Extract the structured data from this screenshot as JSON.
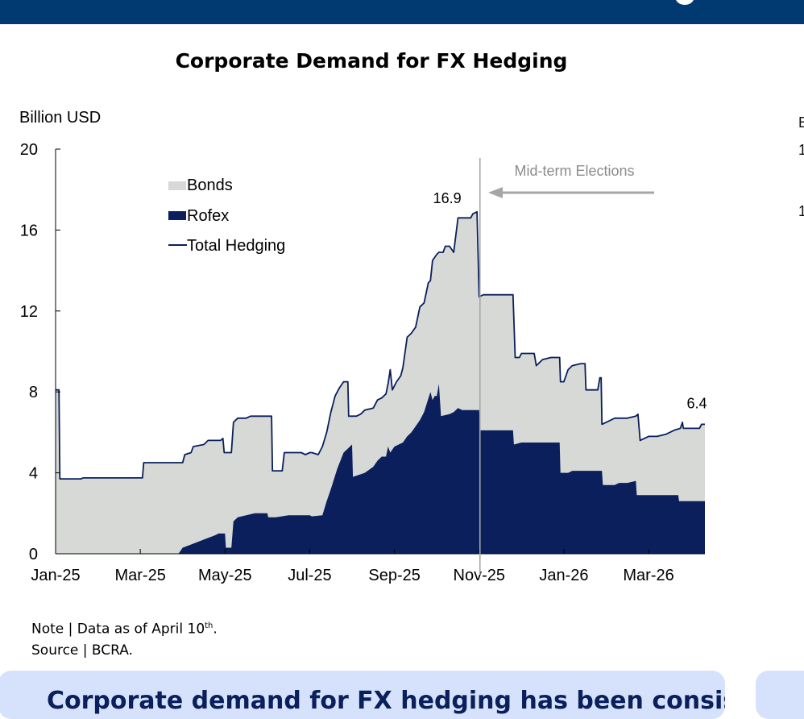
{
  "chart_data": {
    "type": "area",
    "title": "Corporate Demand for FX Hedging",
    "ylabel": "Billion USD",
    "xlabel": "",
    "ylim": [
      0,
      20
    ],
    "yticks": [
      0,
      4,
      8,
      12,
      16,
      20
    ],
    "x_tick_labels": [
      "Jan-25",
      "Mar-25",
      "May-25",
      "Jul-25",
      "Sep-25",
      "Nov-25",
      "Jan-26",
      "Mar-26"
    ],
    "x_range_months": [
      0,
      15.33
    ],
    "legend": {
      "position": "top-left",
      "labels": [
        "Bonds",
        "Rofex",
        "Total Hedging"
      ]
    },
    "series": [
      {
        "name": "Rofex",
        "kind": "area",
        "color": "#0a1f5c",
        "points": [
          [
            0,
            0
          ],
          [
            2.9,
            0
          ],
          [
            3.0,
            0.3
          ],
          [
            3.25,
            0.5
          ],
          [
            3.5,
            0.7
          ],
          [
            3.75,
            0.9
          ],
          [
            3.85,
            1.0
          ],
          [
            4.0,
            1.0
          ],
          [
            4.02,
            0.3
          ],
          [
            4.15,
            0.3
          ],
          [
            4.2,
            1.6
          ],
          [
            4.3,
            1.8
          ],
          [
            4.5,
            1.9
          ],
          [
            4.7,
            2.0
          ],
          [
            5.0,
            2.0
          ],
          [
            5.02,
            1.8
          ],
          [
            5.2,
            1.8
          ],
          [
            5.5,
            1.9
          ],
          [
            5.8,
            1.9
          ],
          [
            6.0,
            1.9
          ],
          [
            6.05,
            1.85
          ],
          [
            6.3,
            1.9
          ],
          [
            6.4,
            2.6
          ],
          [
            6.5,
            3.2
          ],
          [
            6.65,
            4.2
          ],
          [
            6.8,
            5.0
          ],
          [
            6.9,
            5.2
          ],
          [
            7.0,
            5.4
          ],
          [
            7.02,
            3.8
          ],
          [
            7.3,
            4.0
          ],
          [
            7.5,
            4.3
          ],
          [
            7.6,
            4.6
          ],
          [
            7.7,
            4.8
          ],
          [
            7.8,
            4.8
          ],
          [
            7.85,
            5.3
          ],
          [
            7.9,
            5.0
          ],
          [
            8.0,
            5.3
          ],
          [
            8.2,
            5.5
          ],
          [
            8.3,
            5.8
          ],
          [
            8.4,
            6.0
          ],
          [
            8.5,
            6.3
          ],
          [
            8.6,
            6.6
          ],
          [
            8.7,
            7.0
          ],
          [
            8.85,
            8.0
          ],
          [
            8.9,
            7.6
          ],
          [
            8.95,
            7.8
          ],
          [
            9.0,
            7.8
          ],
          [
            9.05,
            8.4
          ],
          [
            9.1,
            6.8
          ],
          [
            9.3,
            6.9
          ],
          [
            9.4,
            7.0
          ],
          [
            9.5,
            7.2
          ],
          [
            9.6,
            7.1
          ],
          [
            9.8,
            7.1
          ],
          [
            10.0,
            7.1
          ],
          [
            10.02,
            6.1
          ],
          [
            10.3,
            6.1
          ],
          [
            10.5,
            6.1
          ],
          [
            10.8,
            6.1
          ],
          [
            10.82,
            5.4
          ],
          [
            11.0,
            5.5
          ],
          [
            11.3,
            5.5
          ],
          [
            11.7,
            5.5
          ],
          [
            11.9,
            5.5
          ],
          [
            11.92,
            4.0
          ],
          [
            12.1,
            4.0
          ],
          [
            12.2,
            4.1
          ],
          [
            12.9,
            4.1
          ],
          [
            12.92,
            3.4
          ],
          [
            13.2,
            3.4
          ],
          [
            13.3,
            3.5
          ],
          [
            13.5,
            3.5
          ],
          [
            13.7,
            3.6
          ],
          [
            13.72,
            2.9
          ],
          [
            14.0,
            2.9
          ],
          [
            14.5,
            2.9
          ],
          [
            14.7,
            2.9
          ],
          [
            14.72,
            2.6
          ],
          [
            15.0,
            2.6
          ],
          [
            15.33,
            2.6
          ]
        ]
      },
      {
        "name": "Total Hedging",
        "kind": "line-with-bonds-fill",
        "color": "#0a1f5c",
        "fill_color": "#d6d9d6",
        "points": [
          [
            0,
            8.1
          ],
          [
            0.08,
            8.1
          ],
          [
            0.1,
            3.7
          ],
          [
            0.6,
            3.7
          ],
          [
            0.65,
            3.75
          ],
          [
            2.0,
            3.75
          ],
          [
            2.05,
            3.75
          ],
          [
            2.08,
            4.5
          ],
          [
            2.5,
            4.5
          ],
          [
            2.9,
            4.5
          ],
          [
            3.0,
            4.5
          ],
          [
            3.05,
            4.9
          ],
          [
            3.2,
            5.0
          ],
          [
            3.25,
            5.3
          ],
          [
            3.5,
            5.4
          ],
          [
            3.6,
            5.6
          ],
          [
            3.8,
            5.6
          ],
          [
            3.9,
            5.6
          ],
          [
            3.95,
            5.7
          ],
          [
            3.98,
            5.0
          ],
          [
            4.15,
            5.0
          ],
          [
            4.2,
            6.5
          ],
          [
            4.3,
            6.7
          ],
          [
            4.5,
            6.7
          ],
          [
            4.6,
            6.8
          ],
          [
            4.9,
            6.8
          ],
          [
            5.1,
            6.8
          ],
          [
            5.12,
            4.1
          ],
          [
            5.35,
            4.1
          ],
          [
            5.4,
            5.0
          ],
          [
            5.6,
            5.0
          ],
          [
            5.8,
            5.0
          ],
          [
            5.9,
            4.9
          ],
          [
            6.0,
            5.0
          ],
          [
            6.05,
            5.0
          ],
          [
            6.2,
            4.9
          ],
          [
            6.3,
            5.3
          ],
          [
            6.4,
            6.0
          ],
          [
            6.5,
            7.0
          ],
          [
            6.6,
            7.8
          ],
          [
            6.7,
            8.2
          ],
          [
            6.8,
            8.5
          ],
          [
            6.9,
            8.5
          ],
          [
            6.92,
            6.8
          ],
          [
            7.1,
            6.8
          ],
          [
            7.2,
            6.9
          ],
          [
            7.3,
            7.1
          ],
          [
            7.5,
            7.2
          ],
          [
            7.6,
            7.6
          ],
          [
            7.7,
            7.7
          ],
          [
            7.8,
            7.9
          ],
          [
            7.85,
            8.4
          ],
          [
            7.9,
            9.1
          ],
          [
            7.95,
            8.1
          ],
          [
            8.05,
            8.5
          ],
          [
            8.15,
            8.8
          ],
          [
            8.2,
            9.2
          ],
          [
            8.3,
            10.7
          ],
          [
            8.4,
            10.9
          ],
          [
            8.5,
            11.2
          ],
          [
            8.6,
            12.2
          ],
          [
            8.7,
            12.4
          ],
          [
            8.8,
            13.4
          ],
          [
            8.85,
            13.5
          ],
          [
            8.9,
            14.5
          ],
          [
            9.0,
            14.8
          ],
          [
            9.05,
            14.9
          ],
          [
            9.15,
            14.9
          ],
          [
            9.2,
            15.2
          ],
          [
            9.3,
            15.2
          ],
          [
            9.4,
            14.9
          ],
          [
            9.5,
            16.6
          ],
          [
            9.6,
            16.6
          ],
          [
            9.8,
            16.6
          ],
          [
            9.85,
            16.8
          ],
          [
            9.95,
            16.9
          ],
          [
            10.0,
            12.7
          ],
          [
            10.1,
            12.8
          ],
          [
            10.5,
            12.8
          ],
          [
            10.8,
            12.8
          ],
          [
            10.85,
            9.7
          ],
          [
            10.95,
            9.7
          ],
          [
            11.0,
            9.9
          ],
          [
            11.3,
            9.9
          ],
          [
            11.35,
            9.3
          ],
          [
            11.5,
            9.6
          ],
          [
            11.7,
            9.7
          ],
          [
            11.9,
            9.7
          ],
          [
            11.92,
            8.5
          ],
          [
            12.0,
            8.5
          ],
          [
            12.1,
            9.1
          ],
          [
            12.2,
            9.3
          ],
          [
            12.4,
            9.4
          ],
          [
            12.5,
            9.4
          ],
          [
            12.52,
            8.1
          ],
          [
            12.8,
            8.1
          ],
          [
            12.85,
            8.7
          ],
          [
            12.88,
            8.7
          ],
          [
            12.9,
            6.4
          ],
          [
            13.0,
            6.5
          ],
          [
            13.2,
            6.7
          ],
          [
            13.5,
            6.7
          ],
          [
            13.7,
            6.8
          ],
          [
            13.75,
            6.9
          ],
          [
            13.8,
            5.6
          ],
          [
            13.9,
            5.7
          ],
          [
            14.0,
            5.8
          ],
          [
            14.2,
            5.8
          ],
          [
            14.4,
            5.9
          ],
          [
            14.5,
            6.0
          ],
          [
            14.6,
            6.1
          ],
          [
            14.75,
            6.2
          ],
          [
            14.8,
            6.5
          ],
          [
            14.82,
            6.2
          ],
          [
            15.0,
            6.2
          ],
          [
            15.2,
            6.2
          ],
          [
            15.25,
            6.4
          ],
          [
            15.33,
            6.4
          ]
        ]
      }
    ],
    "annotations": [
      {
        "text": "16.9",
        "x": 9.95,
        "y": 16.9
      },
      {
        "text": "6.4",
        "x": 15.33,
        "y": 6.4
      },
      {
        "text": "Mid-term Elections",
        "x": 10.0,
        "kind": "vertical-line-with-arrow"
      }
    ]
  },
  "note": {
    "prefix": "Note | Data as of April 10",
    "superscript": "th",
    "suffix": "."
  },
  "source": "Source | BCRA.",
  "banner": {
    "text": "Corporate demand for FX hedging has been consistently"
  },
  "right_chart_partial": {
    "label": "B",
    "tick_a": "1",
    "tick_b": "1"
  },
  "colors": {
    "header": "#003a70",
    "bonds": "#d6d9d6",
    "rofex": "#0a1f5c",
    "total_line": "#0a1f5c",
    "banner_bg": "#d6e2fb",
    "banner_text": "#0a1f5c",
    "election_line": "#a6a6a6"
  }
}
